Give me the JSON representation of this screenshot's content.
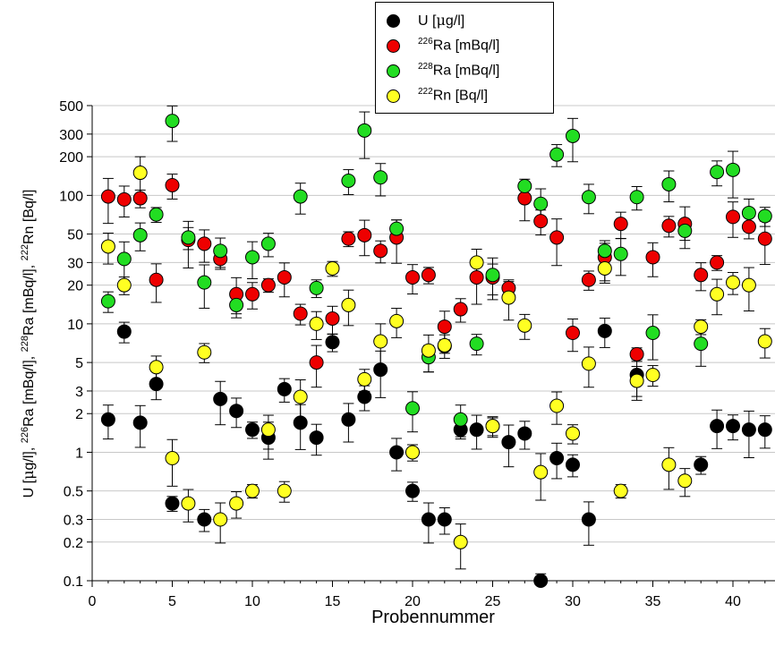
{
  "chart_data": {
    "type": "scatter",
    "xlabel": "Probennummer",
    "ylabel_parts": [
      "U [",
      "μ",
      "g/l], ",
      "226",
      "Ra [mBq/l], ",
      "228",
      "Ra [mBq/l], ",
      "222",
      "Rn [Bq/l]"
    ],
    "xlim": [
      0,
      42
    ],
    "ylim": [
      0.1,
      500
    ],
    "yscale": "log",
    "x_ticks": [
      0,
      5,
      10,
      15,
      20,
      25,
      30,
      35,
      40
    ],
    "y_ticks": [
      0.1,
      0.2,
      0.3,
      0.5,
      1,
      2,
      3,
      5,
      10,
      20,
      30,
      50,
      100,
      200,
      300,
      500
    ],
    "y_tick_labels": [
      "0.1",
      "0.2",
      "0.3",
      "0.5",
      "1",
      "2",
      "3",
      "5",
      "10",
      "20",
      "30",
      "50",
      "100",
      "200",
      "300",
      "500"
    ],
    "grid": "horizontal",
    "legend_position": "top-center",
    "series": [
      {
        "name": "U [μg/l]",
        "legend": {
          "iso": "",
          "pre": "U [",
          "mu": "μ",
          "post": "g/l]"
        },
        "color": "#000000",
        "points": [
          [
            1,
            1.8
          ],
          [
            2,
            8.7
          ],
          [
            3,
            1.7
          ],
          [
            4,
            3.4
          ],
          [
            5,
            0.4
          ],
          [
            7,
            0.3
          ],
          [
            8,
            2.6
          ],
          [
            9,
            2.1
          ],
          [
            10,
            1.5
          ],
          [
            11,
            1.3
          ],
          [
            12,
            3.1
          ],
          [
            13,
            1.7
          ],
          [
            14,
            1.3
          ],
          [
            15,
            7.2
          ],
          [
            16,
            1.8
          ],
          [
            17,
            2.7
          ],
          [
            18,
            4.4
          ],
          [
            19,
            1.0
          ],
          [
            20,
            0.5
          ],
          [
            21,
            0.3
          ],
          [
            22,
            0.3
          ],
          [
            23,
            1.5
          ],
          [
            24,
            1.5
          ],
          [
            25,
            1.6
          ],
          [
            26,
            1.2
          ],
          [
            27,
            1.4
          ],
          [
            28,
            0.1
          ],
          [
            29,
            0.9
          ],
          [
            30,
            0.8
          ],
          [
            31,
            0.3
          ],
          [
            32,
            8.8
          ],
          [
            34,
            4.0
          ],
          [
            38,
            0.8
          ],
          [
            39,
            1.6
          ],
          [
            40,
            1.6
          ],
          [
            41,
            1.5
          ],
          [
            42,
            1.5
          ]
        ]
      },
      {
        "name": "226Ra [mBq/l]",
        "legend": {
          "iso": "226",
          "pre": "Ra [mBq/l]",
          "mu": "",
          "post": ""
        },
        "color": "#ee0000",
        "points": [
          [
            1,
            98
          ],
          [
            2,
            93
          ],
          [
            3,
            95
          ],
          [
            4,
            22
          ],
          [
            5,
            120
          ],
          [
            6,
            45
          ],
          [
            7,
            42
          ],
          [
            8,
            32
          ],
          [
            9,
            17
          ],
          [
            10,
            17
          ],
          [
            11,
            20
          ],
          [
            12,
            23
          ],
          [
            13,
            12
          ],
          [
            14,
            5
          ],
          [
            15,
            11
          ],
          [
            16,
            46
          ],
          [
            17,
            49
          ],
          [
            18,
            37
          ],
          [
            19,
            47
          ],
          [
            20,
            23
          ],
          [
            21,
            24
          ],
          [
            22,
            9.5
          ],
          [
            23,
            13
          ],
          [
            24,
            23
          ],
          [
            25,
            23
          ],
          [
            26,
            19
          ],
          [
            27,
            95
          ],
          [
            28,
            63
          ],
          [
            29,
            47
          ],
          [
            30,
            8.5
          ],
          [
            31,
            22
          ],
          [
            32,
            33
          ],
          [
            33,
            60
          ],
          [
            34,
            5.8
          ],
          [
            35,
            33
          ],
          [
            36,
            58
          ],
          [
            37,
            60
          ],
          [
            38,
            24
          ],
          [
            39,
            30
          ],
          [
            40,
            68
          ],
          [
            41,
            57
          ],
          [
            42,
            46
          ]
        ]
      },
      {
        "name": "228Ra [mBq/l]",
        "legend": {
          "iso": "228",
          "pre": "Ra [mBq/l]",
          "mu": "",
          "post": ""
        },
        "color": "#22dd22",
        "points": [
          [
            1,
            15
          ],
          [
            2,
            32
          ],
          [
            3,
            49
          ],
          [
            4,
            71
          ],
          [
            5,
            380
          ],
          [
            6,
            47
          ],
          [
            7,
            21
          ],
          [
            8,
            37
          ],
          [
            9,
            14
          ],
          [
            10,
            33
          ],
          [
            11,
            42
          ],
          [
            13,
            98
          ],
          [
            14,
            19
          ],
          [
            16,
            130
          ],
          [
            17,
            320
          ],
          [
            18,
            138
          ],
          [
            19,
            55
          ],
          [
            20,
            2.2
          ],
          [
            21,
            5.5
          ],
          [
            22,
            6.7
          ],
          [
            23,
            1.8
          ],
          [
            24,
            7.0
          ],
          [
            25,
            24
          ],
          [
            27,
            118
          ],
          [
            28,
            86
          ],
          [
            29,
            208
          ],
          [
            30,
            290
          ],
          [
            31,
            97
          ],
          [
            32,
            37
          ],
          [
            33,
            35
          ],
          [
            34,
            97
          ],
          [
            35,
            8.5
          ],
          [
            36,
            122
          ],
          [
            37,
            53
          ],
          [
            38,
            7.0
          ],
          [
            39,
            152
          ],
          [
            40,
            158
          ],
          [
            41,
            73
          ],
          [
            42,
            69
          ]
        ]
      },
      {
        "name": "222Rn [Bq/l]",
        "legend": {
          "iso": "222",
          "pre": "Rn [Bq/l]",
          "mu": "",
          "post": ""
        },
        "color": "#ffff22",
        "points": [
          [
            1,
            40
          ],
          [
            2,
            20
          ],
          [
            3,
            150
          ],
          [
            4,
            4.6
          ],
          [
            5,
            0.9
          ],
          [
            6,
            0.4
          ],
          [
            7,
            6.0
          ],
          [
            8,
            0.3
          ],
          [
            9,
            0.4
          ],
          [
            10,
            0.5
          ],
          [
            11,
            1.5
          ],
          [
            12,
            0.5
          ],
          [
            13,
            2.7
          ],
          [
            14,
            10
          ],
          [
            15,
            27
          ],
          [
            16,
            14
          ],
          [
            17,
            3.7
          ],
          [
            18,
            7.3
          ],
          [
            19,
            10.5
          ],
          [
            20,
            1.0
          ],
          [
            21,
            6.2
          ],
          [
            22,
            6.8
          ],
          [
            23,
            0.2
          ],
          [
            24,
            30
          ],
          [
            25,
            1.6
          ],
          [
            26,
            16
          ],
          [
            27,
            9.7
          ],
          [
            28,
            0.7
          ],
          [
            29,
            2.3
          ],
          [
            30,
            1.4
          ],
          [
            31,
            4.9
          ],
          [
            32,
            27
          ],
          [
            33,
            0.5
          ],
          [
            34,
            3.6
          ],
          [
            35,
            4.0
          ],
          [
            36,
            0.8
          ],
          [
            37,
            0.6
          ],
          [
            38,
            9.5
          ],
          [
            39,
            17
          ],
          [
            40,
            21
          ],
          [
            41,
            20
          ],
          [
            42,
            7.3
          ]
        ]
      }
    ]
  }
}
